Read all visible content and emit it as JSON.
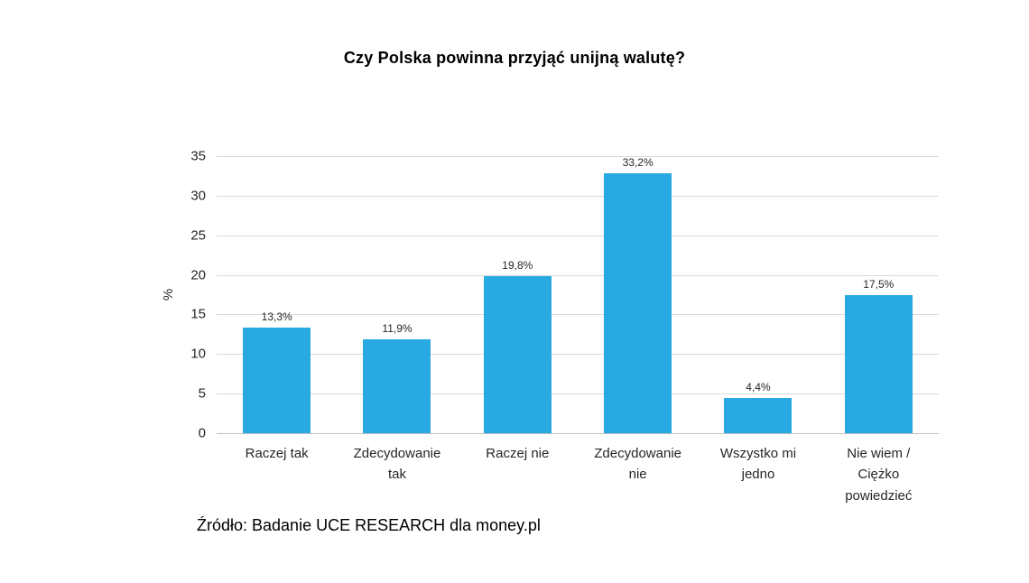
{
  "chart_data": {
    "type": "bar",
    "title": "Czy Polska powinna przyjąć unijną walutę?",
    "categories": [
      "Raczej tak",
      "Zdecydowanie tak",
      "Raczej nie",
      "Zdecydowanie nie",
      "Wszystko mi jedno",
      "Nie wiem / Ciężko powiedzieć"
    ],
    "values": [
      13.3,
      11.9,
      19.8,
      33.2,
      4.4,
      17.5
    ],
    "value_labels": [
      "13,3%",
      "11,9%",
      "19,8%",
      "33,2%",
      "4,4%",
      "17,5%"
    ],
    "xlabel": "",
    "ylabel": "%",
    "ylim": [
      0,
      35
    ],
    "ytick_step": 5,
    "grid": true,
    "legend": false,
    "bar_color": "#29A9E1",
    "source": "Źródło: Badanie UCE RESEARCH dla money.pl"
  }
}
